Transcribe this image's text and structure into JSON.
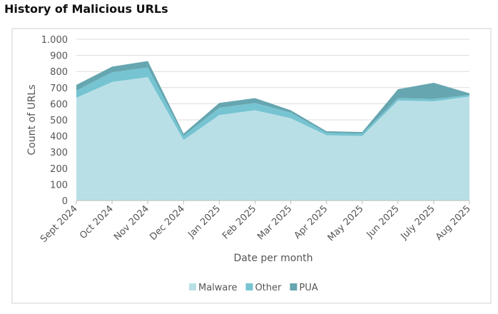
{
  "chart_data": {
    "type": "stacked-area",
    "title": "History of Malicious URLs",
    "x_label": "Date per month",
    "y_label": "Count of URLs",
    "categories": [
      "Sept 2024",
      "Oct 2024",
      "Nov 2024",
      "Dec 2024",
      "Jan 2025",
      "Feb 2025",
      "Mar 2025",
      "Apr 2025",
      "May 2025",
      "Jun 2025",
      "July 2025",
      "Aug 2025"
    ],
    "series": [
      {
        "name": "Malware",
        "color": "#b9dfe6",
        "values": [
          637,
          735,
          765,
          375,
          530,
          560,
          510,
          405,
          400,
          620,
          615,
          645
        ]
      },
      {
        "name": "Other",
        "color": "#76c4d2",
        "values": [
          45,
          60,
          60,
          25,
          45,
          45,
          35,
          15,
          15,
          15,
          15,
          10
        ]
      },
      {
        "name": "PUA",
        "color": "#66a6b0",
        "values": [
          35,
          35,
          40,
          15,
          30,
          30,
          15,
          10,
          10,
          55,
          100,
          10
        ]
      }
    ],
    "ylim": [
      0,
      1000
    ],
    "yticks": [
      0,
      100,
      200,
      300,
      400,
      500,
      600,
      700,
      800,
      900,
      {
        "value": 1000,
        "label": "1.000"
      }
    ],
    "grid": true,
    "legend": "bottom"
  }
}
